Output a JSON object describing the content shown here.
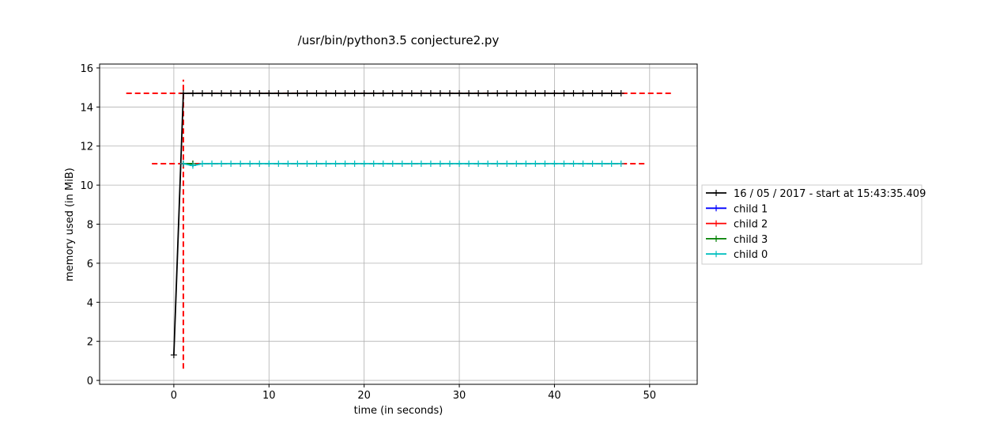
{
  "chart_data": {
    "type": "line",
    "title": "/usr/bin/python3.5 conjecture2.py",
    "xlabel": "time (in seconds)",
    "ylabel": "memory used (in MiB)",
    "xlim": [
      -7.8,
      55
    ],
    "ylim": [
      -0.2,
      16.2
    ],
    "xticks": [
      "0",
      "10",
      "20",
      "30",
      "40",
      "50"
    ],
    "yticks": [
      "0",
      "2",
      "4",
      "6",
      "8",
      "10",
      "12",
      "14",
      "16"
    ],
    "grid": true,
    "legend_position": "right, outside plot",
    "series": [
      {
        "name": "16 / 05 / 2017 - start at 15:43:35.409",
        "color": "#000000",
        "marker": "+",
        "x": [
          0.0,
          1.0,
          2.0,
          3.0,
          4.0,
          5.0,
          6.0,
          7.0,
          8.0,
          9.0,
          10.0,
          11.0,
          12.0,
          13.0,
          14.0,
          15.0,
          16.0,
          17.0,
          18.0,
          19.0,
          20.0,
          21.0,
          22.0,
          23.0,
          24.0,
          25.0,
          26.0,
          27.0,
          28.0,
          29.0,
          30.0,
          31.0,
          32.0,
          33.0,
          34.0,
          35.0,
          36.0,
          37.0,
          38.0,
          39.0,
          40.0,
          41.0,
          42.0,
          43.0,
          44.0,
          45.0,
          46.0,
          47.0
        ],
        "y": [
          1.3,
          14.7,
          14.7,
          14.7,
          14.7,
          14.7,
          14.7,
          14.7,
          14.7,
          14.7,
          14.7,
          14.7,
          14.7,
          14.7,
          14.7,
          14.7,
          14.7,
          14.7,
          14.7,
          14.7,
          14.7,
          14.7,
          14.7,
          14.7,
          14.7,
          14.7,
          14.7,
          14.7,
          14.7,
          14.7,
          14.7,
          14.7,
          14.7,
          14.7,
          14.7,
          14.7,
          14.7,
          14.7,
          14.7,
          14.7,
          14.7,
          14.7,
          14.7,
          14.7,
          14.7,
          14.7,
          14.7,
          14.7
        ]
      },
      {
        "name": "child 1",
        "color": "#0000ff",
        "marker": "+",
        "x": [
          1.0,
          2.0
        ],
        "y": [
          11.1,
          11.1
        ]
      },
      {
        "name": "child 2",
        "color": "#ff0000",
        "marker": "+",
        "x": [
          1.0,
          2.0
        ],
        "y": [
          11.1,
          11.1
        ]
      },
      {
        "name": "child 3",
        "color": "#008000",
        "marker": "+",
        "x": [
          1.0,
          2.0
        ],
        "y": [
          11.1,
          11.1
        ]
      },
      {
        "name": "child 0",
        "color": "#00bfbf",
        "marker": "+",
        "x": [
          1.0,
          2.0,
          3.0,
          4.0,
          5.0,
          6.0,
          7.0,
          8.0,
          9.0,
          10.0,
          11.0,
          12.0,
          13.0,
          14.0,
          15.0,
          16.0,
          17.0,
          18.0,
          19.0,
          20.0,
          21.0,
          22.0,
          23.0,
          24.0,
          25.0,
          26.0,
          27.0,
          28.0,
          29.0,
          30.0,
          31.0,
          32.0,
          33.0,
          34.0,
          35.0,
          36.0,
          37.0,
          38.0,
          39.0,
          40.0,
          41.0,
          42.0,
          43.0,
          44.0,
          45.0,
          46.0,
          47.0
        ],
        "y": [
          11.1,
          11.0,
          11.1,
          11.1,
          11.1,
          11.1,
          11.1,
          11.1,
          11.1,
          11.1,
          11.1,
          11.1,
          11.1,
          11.1,
          11.1,
          11.1,
          11.1,
          11.1,
          11.1,
          11.1,
          11.1,
          11.1,
          11.1,
          11.1,
          11.1,
          11.1,
          11.1,
          11.1,
          11.1,
          11.1,
          11.1,
          11.1,
          11.1,
          11.1,
          11.1,
          11.1,
          11.1,
          11.1,
          11.1,
          11.1,
          11.1,
          11.1,
          11.1,
          11.1,
          11.1,
          11.1,
          11.1
        ]
      }
    ],
    "reference_lines": [
      {
        "orientation": "horizontal",
        "value": 14.7,
        "from": -5.0,
        "to": 52.3,
        "color": "#ff0000",
        "style": "dashed"
      },
      {
        "orientation": "horizontal",
        "value": 11.1,
        "from": -2.3,
        "to": 49.5,
        "color": "#ff0000",
        "style": "dashed"
      },
      {
        "orientation": "vertical",
        "value": 1.0,
        "from": 0.6,
        "to": 15.4,
        "color": "#ff0000",
        "style": "dashed"
      }
    ]
  }
}
